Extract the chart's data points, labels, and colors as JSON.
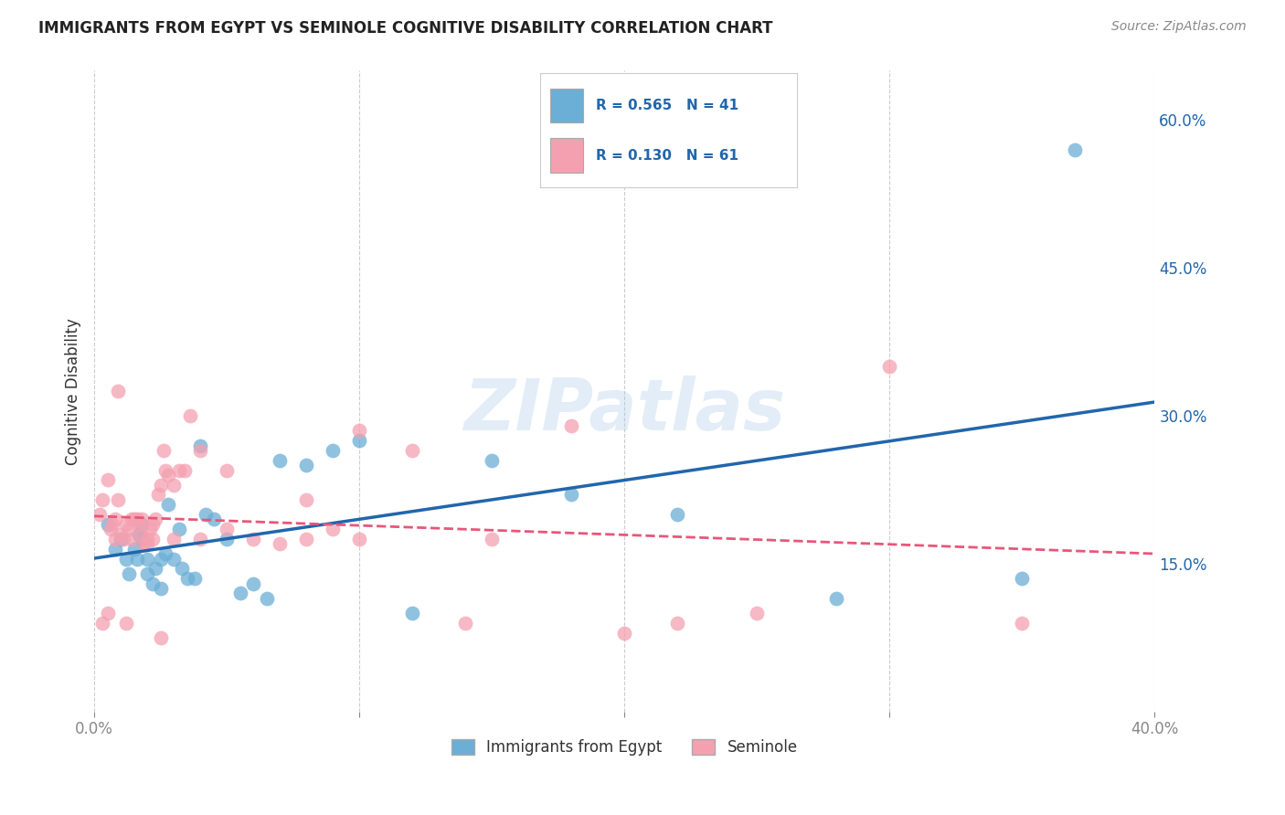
{
  "title": "IMMIGRANTS FROM EGYPT VS SEMINOLE COGNITIVE DISABILITY CORRELATION CHART",
  "source": "Source: ZipAtlas.com",
  "ylabel": "Cognitive Disability",
  "xlim": [
    0.0,
    0.4
  ],
  "ylim": [
    0.0,
    0.65
  ],
  "yticks_right": [
    0.15,
    0.3,
    0.45,
    0.6
  ],
  "ytick_labels_right": [
    "15.0%",
    "30.0%",
    "45.0%",
    "60.0%"
  ],
  "grid_color": "#cccccc",
  "background_color": "#ffffff",
  "blue_color": "#6baed6",
  "pink_color": "#f4a0b0",
  "blue_line_color": "#2166ac",
  "pink_line_color": "#e8567a",
  "legend_R1": "R = 0.565",
  "legend_N1": "N = 41",
  "legend_R2": "R = 0.130",
  "legend_N2": "N = 61",
  "legend_label1": "Immigrants from Egypt",
  "legend_label2": "Seminole",
  "watermark": "ZIPatlas",
  "blue_scatter_x": [
    0.005,
    0.008,
    0.01,
    0.012,
    0.013,
    0.015,
    0.016,
    0.017,
    0.018,
    0.018,
    0.02,
    0.02,
    0.022,
    0.023,
    0.025,
    0.025,
    0.027,
    0.028,
    0.03,
    0.032,
    0.033,
    0.035,
    0.038,
    0.04,
    0.042,
    0.045,
    0.05,
    0.055,
    0.06,
    0.065,
    0.07,
    0.08,
    0.09,
    0.1,
    0.12,
    0.15,
    0.18,
    0.22,
    0.28,
    0.35,
    0.37
  ],
  "blue_scatter_y": [
    0.19,
    0.165,
    0.175,
    0.155,
    0.14,
    0.165,
    0.155,
    0.18,
    0.19,
    0.175,
    0.155,
    0.14,
    0.13,
    0.145,
    0.155,
    0.125,
    0.16,
    0.21,
    0.155,
    0.185,
    0.145,
    0.135,
    0.135,
    0.27,
    0.2,
    0.195,
    0.175,
    0.12,
    0.13,
    0.115,
    0.255,
    0.25,
    0.265,
    0.275,
    0.1,
    0.255,
    0.22,
    0.2,
    0.115,
    0.135,
    0.57
  ],
  "pink_scatter_x": [
    0.002,
    0.003,
    0.005,
    0.006,
    0.007,
    0.008,
    0.009,
    0.01,
    0.011,
    0.012,
    0.013,
    0.014,
    0.015,
    0.016,
    0.017,
    0.018,
    0.019,
    0.02,
    0.021,
    0.022,
    0.023,
    0.024,
    0.025,
    0.026,
    0.027,
    0.028,
    0.03,
    0.032,
    0.034,
    0.036,
    0.04,
    0.05,
    0.06,
    0.07,
    0.08,
    0.09,
    0.1,
    0.12,
    0.15,
    0.18,
    0.22,
    0.003,
    0.008,
    0.012,
    0.02,
    0.025,
    0.04,
    0.1,
    0.2,
    0.3,
    0.005,
    0.009,
    0.014,
    0.018,
    0.022,
    0.03,
    0.05,
    0.08,
    0.14,
    0.25,
    0.35
  ],
  "pink_scatter_y": [
    0.2,
    0.215,
    0.235,
    0.185,
    0.19,
    0.195,
    0.215,
    0.18,
    0.175,
    0.19,
    0.185,
    0.195,
    0.195,
    0.195,
    0.19,
    0.195,
    0.17,
    0.175,
    0.185,
    0.19,
    0.195,
    0.22,
    0.23,
    0.265,
    0.245,
    0.24,
    0.23,
    0.245,
    0.245,
    0.3,
    0.265,
    0.245,
    0.175,
    0.17,
    0.175,
    0.185,
    0.285,
    0.265,
    0.175,
    0.29,
    0.09,
    0.09,
    0.175,
    0.09,
    0.17,
    0.075,
    0.175,
    0.175,
    0.08,
    0.35,
    0.1,
    0.325,
    0.175,
    0.18,
    0.175,
    0.175,
    0.185,
    0.215,
    0.09,
    0.1,
    0.09
  ]
}
